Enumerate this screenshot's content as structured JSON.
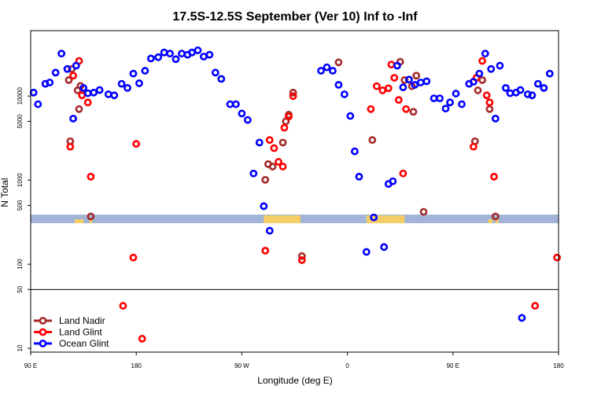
{
  "chart_data": {
    "type": "scatter",
    "title": "17.5S-12.5S September (Ver 10)   Inf to -Inf",
    "xlabel": "Longitude (deg E)",
    "ylabel": "N Total",
    "x_scale": "linear",
    "y_scale": "log",
    "xlim": [
      90,
      450
    ],
    "ylim": [
      9,
      60000
    ],
    "x_ticks": [
      {
        "value": 90,
        "label": "90 E"
      },
      {
        "value": 162,
        "label": "180"
      },
      {
        "value": 234,
        "label": "90 W"
      },
      {
        "value": 306,
        "label": "0"
      },
      {
        "value": 378,
        "label": "90 E"
      },
      {
        "value": 450,
        "label": "180"
      }
    ],
    "y_ticks": [
      {
        "value": 10,
        "label": "10"
      },
      {
        "value": 50,
        "label": "50"
      },
      {
        "value": 100,
        "label": "100"
      },
      {
        "value": 500,
        "label": "500"
      },
      {
        "value": 1000,
        "label": "1000"
      },
      {
        "value": 5000,
        "label": "5000"
      },
      {
        "value": 10000,
        "label": "10000"
      }
    ],
    "hline": 50,
    "legend_position": "bottom-left",
    "series": [
      {
        "name": "Land Nadir",
        "color": "#a52a2a",
        "points": [
          [
            116,
            15500
          ],
          [
            118,
            21000
          ],
          [
            122,
            11700
          ],
          [
            124,
            13200
          ],
          [
            123,
            7000
          ],
          [
            117,
            2900
          ],
          [
            131,
            370
          ],
          [
            250,
            1010
          ],
          [
            252,
            1550
          ],
          [
            255,
            1450
          ],
          [
            262,
            2800
          ],
          [
            264,
            5000
          ],
          [
            266,
            6000
          ],
          [
            269,
            11000
          ],
          [
            275,
            125
          ],
          [
            300,
            25200
          ],
          [
            323,
            3000
          ],
          [
            342,
            25600
          ],
          [
            345,
            15500
          ],
          [
            350,
            13100
          ],
          [
            353,
            17500
          ],
          [
            351,
            6500
          ],
          [
            358,
            420
          ],
          [
            393,
            2900
          ],
          [
            395,
            11700
          ],
          [
            398,
            15500
          ],
          [
            403,
            7000
          ],
          [
            407,
            370
          ]
        ]
      },
      {
        "name": "Land Glint",
        "color": "#ff0000",
        "points": [
          [
            117,
            2500
          ],
          [
            119,
            17500
          ],
          [
            123,
            26200
          ],
          [
            125,
            10200
          ],
          [
            129,
            8400
          ],
          [
            131,
            1100
          ],
          [
            153,
            32
          ],
          [
            160,
            120
          ],
          [
            162,
            2700
          ],
          [
            166,
            13
          ],
          [
            250,
            145
          ],
          [
            253,
            3000
          ],
          [
            256,
            2400
          ],
          [
            259,
            1650
          ],
          [
            262,
            1450
          ],
          [
            263,
            4200
          ],
          [
            266,
            5700
          ],
          [
            269,
            10000
          ],
          [
            275,
            112
          ],
          [
            322,
            7000
          ],
          [
            326,
            13100
          ],
          [
            330,
            11700
          ],
          [
            334,
            12400
          ],
          [
            336,
            23700
          ],
          [
            338,
            16500
          ],
          [
            341,
            9000
          ],
          [
            344,
            1200
          ],
          [
            346,
            7000
          ],
          [
            392,
            2500
          ],
          [
            394,
            16500
          ],
          [
            398,
            26200
          ],
          [
            401,
            10200
          ],
          [
            403,
            8400
          ],
          [
            406,
            1100
          ],
          [
            434,
            32
          ],
          [
            449,
            120
          ]
        ]
      },
      {
        "name": "Ocean Glint",
        "color": "#0000ff",
        "points": [
          [
            92,
            11000
          ],
          [
            95,
            8000
          ],
          [
            100,
            14000
          ],
          [
            103,
            14500
          ],
          [
            107,
            19000
          ],
          [
            111,
            32000
          ],
          [
            115,
            21000
          ],
          [
            119,
            5400
          ],
          [
            121,
            23000
          ],
          [
            126,
            12500
          ],
          [
            129,
            10800
          ],
          [
            133,
            11000
          ],
          [
            137,
            11800
          ],
          [
            143,
            10500
          ],
          [
            147,
            10200
          ],
          [
            152,
            14000
          ],
          [
            156,
            12500
          ],
          [
            160,
            18500
          ],
          [
            164,
            14200
          ],
          [
            168,
            20000
          ],
          [
            172,
            28000
          ],
          [
            177,
            29000
          ],
          [
            181,
            33000
          ],
          [
            185,
            32000
          ],
          [
            189,
            27500
          ],
          [
            193,
            32000
          ],
          [
            197,
            31000
          ],
          [
            200,
            33000
          ],
          [
            204,
            35000
          ],
          [
            208,
            29500
          ],
          [
            212,
            31000
          ],
          [
            216,
            19000
          ],
          [
            220,
            16000
          ],
          [
            226,
            8000
          ],
          [
            230,
            8000
          ],
          [
            234,
            6200
          ],
          [
            238,
            5200
          ],
          [
            242,
            1200
          ],
          [
            246,
            2800
          ],
          [
            249,
            490
          ],
          [
            253,
            250
          ],
          [
            288,
            20000
          ],
          [
            292,
            22000
          ],
          [
            296,
            20000
          ],
          [
            300,
            13600
          ],
          [
            304,
            10500
          ],
          [
            308,
            5800
          ],
          [
            311,
            2200
          ],
          [
            314,
            1100
          ],
          [
            319,
            140
          ],
          [
            324,
            360
          ],
          [
            331,
            160
          ],
          [
            334,
            900
          ],
          [
            337,
            970
          ],
          [
            340,
            23000
          ],
          [
            344,
            12700
          ],
          [
            348,
            15700
          ],
          [
            352,
            13600
          ],
          [
            356,
            14500
          ],
          [
            360,
            15000
          ],
          [
            365,
            9400
          ],
          [
            369,
            9400
          ],
          [
            373,
            7100
          ],
          [
            376,
            8400
          ],
          [
            380,
            10700
          ],
          [
            384,
            8000
          ],
          [
            389,
            14000
          ],
          [
            392,
            14800
          ],
          [
            396,
            18500
          ],
          [
            400,
            32000
          ],
          [
            404,
            21000
          ],
          [
            407,
            5400
          ],
          [
            410,
            23000
          ],
          [
            414,
            12500
          ],
          [
            417,
            10800
          ],
          [
            421,
            11000
          ],
          [
            424,
            11800
          ],
          [
            429,
            10500
          ],
          [
            432,
            10200
          ],
          [
            436,
            14000
          ],
          [
            440,
            12500
          ],
          [
            444,
            18500
          ],
          [
            425,
            23
          ]
        ]
      }
    ]
  }
}
